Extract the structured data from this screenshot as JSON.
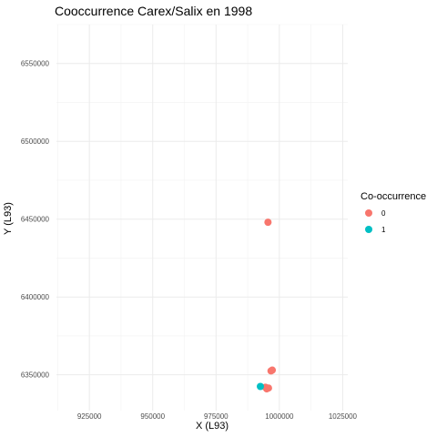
{
  "chart_data": {
    "type": "scatter",
    "title": "Cooccurrence Carex/Salix en 1998",
    "xlabel": "X (L93)",
    "ylabel": "Y (L93)",
    "xlim": [
      912000,
      1027000
    ],
    "ylim": [
      6327000,
      6575000
    ],
    "x_ticks": [
      925000,
      950000,
      975000,
      1000000,
      1025000
    ],
    "x_tick_labels": [
      "925000",
      "950000",
      "975000",
      "1000000",
      "1025000"
    ],
    "y_ticks": [
      6350000,
      6400000,
      6450000,
      6500000,
      6550000
    ],
    "y_tick_labels": [
      "6350000",
      "6400000",
      "6450000",
      "6500000",
      "6550000"
    ],
    "grid": true,
    "legend": {
      "title": "Co-occurrence",
      "placement": "right"
    },
    "series": [
      {
        "name": "0",
        "color": "#F8766D",
        "points": [
          {
            "x": 995500,
            "y": 6448000
          },
          {
            "x": 997200,
            "y": 6353000
          },
          {
            "x": 996700,
            "y": 6352500
          },
          {
            "x": 994500,
            "y": 6342000
          },
          {
            "x": 995700,
            "y": 6341500
          },
          {
            "x": 995000,
            "y": 6341000
          }
        ]
      },
      {
        "name": "1",
        "color": "#00BFC4",
        "points": [
          {
            "x": 992500,
            "y": 6342500
          }
        ]
      }
    ]
  }
}
